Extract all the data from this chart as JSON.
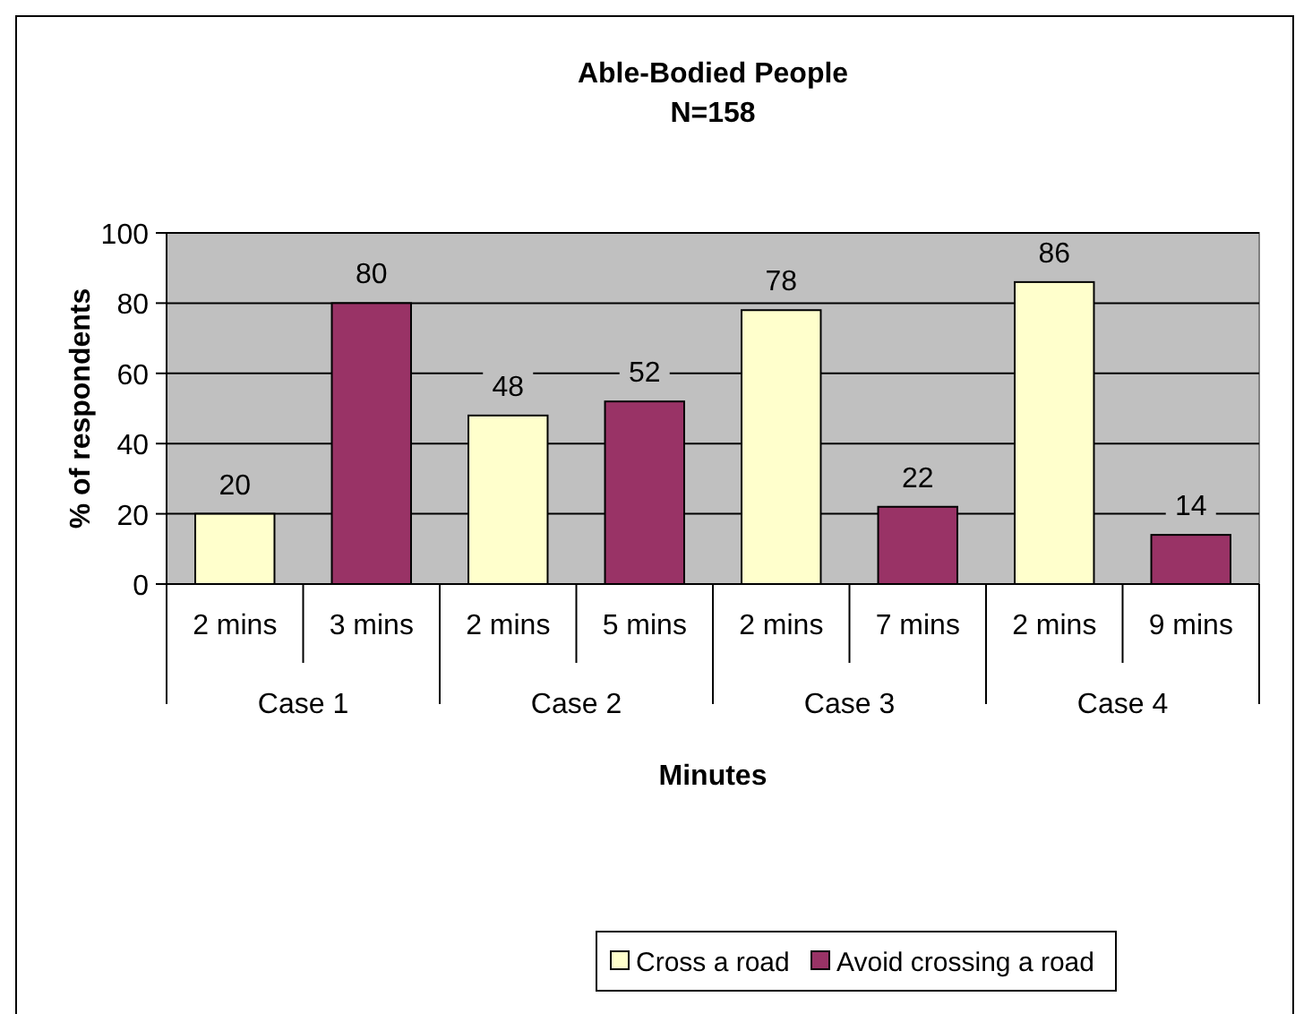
{
  "chart_data": {
    "type": "bar",
    "title": "Able-Bodied People",
    "subtitle": "N=158",
    "xlabel": "Minutes",
    "ylabel": "% of respondents",
    "categories": [
      "2 mins",
      "3 mins",
      "2 mins",
      "5 mins",
      "2 mins",
      "7 mins",
      "2 mins",
      "9 mins"
    ],
    "annotations": [
      "Case 1",
      "Case 2",
      "Case 3",
      "Case 4"
    ],
    "series": [
      {
        "name": "Cross a road",
        "color": "#ffffcc",
        "values": [
          20,
          null,
          48,
          null,
          78,
          null,
          86,
          null
        ]
      },
      {
        "name": "Avoid crossing a road",
        "color": "#993366",
        "values": [
          null,
          80,
          null,
          52,
          null,
          22,
          null,
          14
        ]
      }
    ],
    "ylim": [
      0,
      100
    ],
    "yticks": [
      0,
      20,
      40,
      60,
      80,
      100
    ],
    "grid": "y",
    "data_labels": true,
    "legend": "bottom"
  }
}
